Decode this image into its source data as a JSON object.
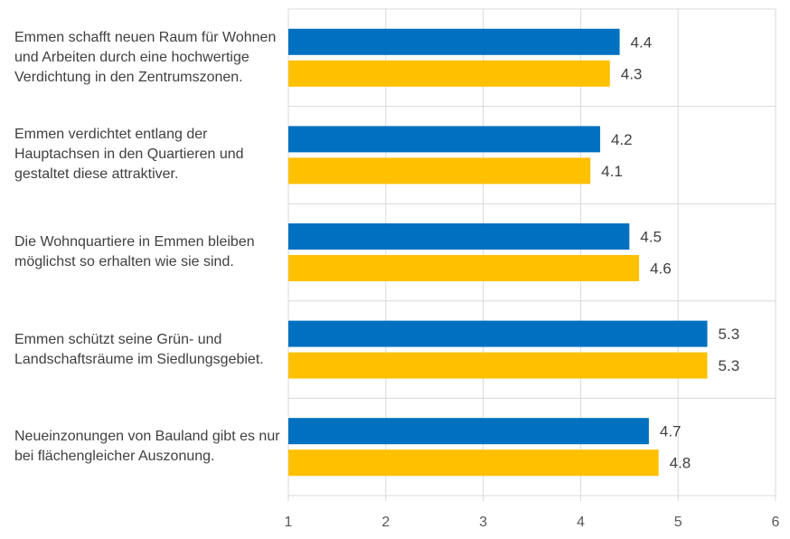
{
  "chart_data": {
    "type": "bar",
    "orientation": "horizontal",
    "categories": [
      "Emmen schafft neuen Raum für Wohnen und Arbeiten durch eine hochwertige Verdichtung in den Zentrumszonen.",
      "Emmen verdichtet entlang der Hauptachsen in den Quartieren und gestaltet diese attraktiver.",
      "Die Wohnquartiere in Emmen bleiben möglichst so erhalten wie sie sind.",
      "Emmen schützt seine Grün- und Landschaftsräume im Siedlungsgebiet.",
      "Neueinzonungen von Bauland gibt es nur bei flächengleicher Auszonung."
    ],
    "series": [
      {
        "values": [
          4.4,
          4.2,
          4.5,
          5.3,
          4.7
        ],
        "color": "#0070C0"
      },
      {
        "values": [
          4.3,
          4.1,
          4.6,
          5.3,
          4.8
        ],
        "color": "#FFC000"
      }
    ],
    "xlim": [
      1,
      6
    ],
    "xticks": [
      "1",
      "2",
      "3",
      "4",
      "5",
      "6"
    ],
    "grid": true,
    "legend": "none",
    "label_color": "#404040",
    "grid_color": "#d9d9d9"
  }
}
